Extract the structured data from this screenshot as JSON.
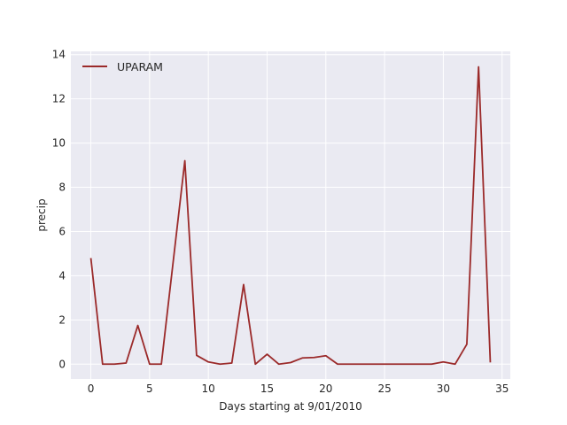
{
  "chart_data": {
    "type": "line",
    "title": "",
    "xlabel": "Days starting at 9/01/2010",
    "ylabel": "precip",
    "xlim": [
      -1.7,
      35.7
    ],
    "ylim": [
      -0.67,
      14.15
    ],
    "xticks": [
      0,
      5,
      10,
      15,
      20,
      25,
      30,
      35
    ],
    "yticks": [
      0,
      2,
      4,
      6,
      8,
      10,
      12,
      14
    ],
    "grid": true,
    "legend_position": "upper left",
    "series": [
      {
        "name": "UPARAM",
        "color": "#9b2a2a",
        "x": [
          0,
          1,
          2,
          3,
          4,
          5,
          6,
          7,
          8,
          9,
          10,
          11,
          12,
          13,
          14,
          15,
          16,
          17,
          18,
          19,
          20,
          21,
          22,
          23,
          24,
          25,
          26,
          27,
          28,
          29,
          30,
          31,
          32,
          33,
          34
        ],
        "values": [
          4.8,
          0.0,
          0.0,
          0.05,
          1.75,
          0.0,
          0.0,
          4.6,
          9.2,
          0.4,
          0.1,
          0.0,
          0.05,
          3.6,
          0.0,
          0.45,
          0.0,
          0.07,
          0.28,
          0.3,
          0.38,
          0.0,
          0.0,
          0.0,
          0.0,
          0.0,
          0.0,
          0.0,
          0.0,
          0.0,
          0.1,
          0.0,
          0.9,
          13.45,
          0.08
        ]
      }
    ]
  }
}
